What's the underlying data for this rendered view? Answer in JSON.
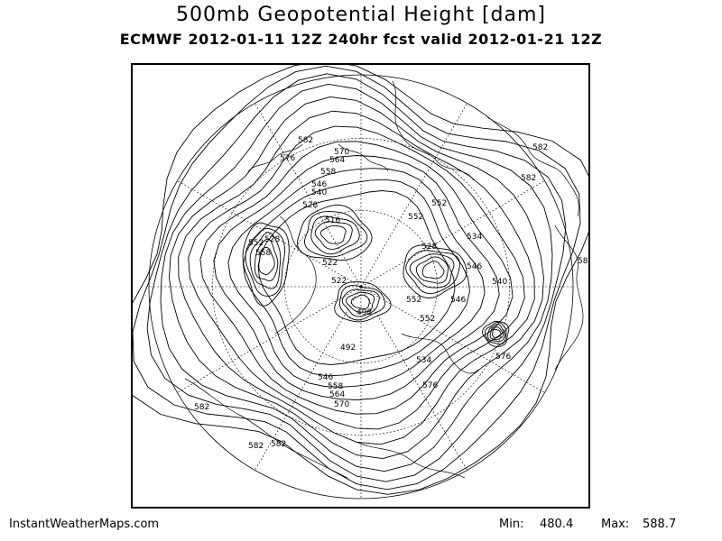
{
  "header": {
    "title": "500mb Geopotential Height [dam]",
    "subtitle": "ECMWF 2012-01-11 12Z 240hr fcst valid 2012-01-21 12Z"
  },
  "footer": {
    "site": "InstantWeatherMaps.com",
    "min_label": "Min:",
    "min_value": "480.4",
    "max_label": "Max:",
    "max_value": "588.7"
  },
  "map": {
    "projection": "polar-stereographic",
    "variable": "500mb geopotential height",
    "units": "dam",
    "min": 480.4,
    "max": 588.7,
    "line_color": "#000000",
    "contour_labels": [
      "582",
      "570",
      "564",
      "576",
      "558",
      "546",
      "540",
      "528",
      "516",
      "522",
      "552",
      "552",
      "534",
      "528",
      "546",
      "540",
      "546",
      "552",
      "528",
      "552",
      "558",
      "522",
      "498",
      "492",
      "534",
      "552",
      "546",
      "558",
      "564",
      "570",
      "576",
      "576",
      "582",
      "582",
      "582",
      "582",
      "582",
      "58"
    ]
  }
}
